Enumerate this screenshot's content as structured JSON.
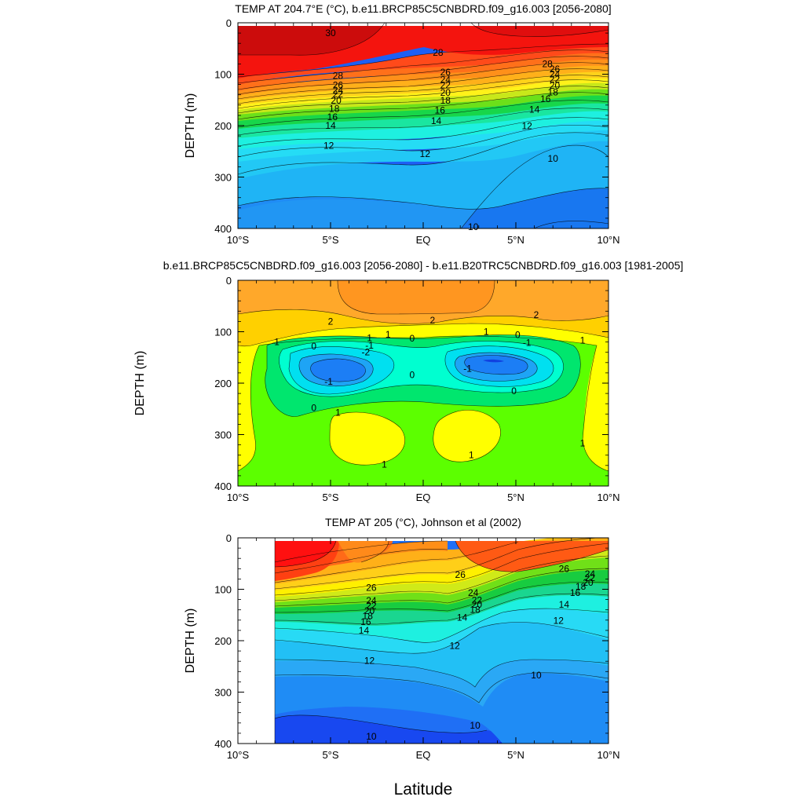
{
  "figure": {
    "xlabel": "Latitude"
  },
  "chart_data": [
    {
      "type": "heatmap",
      "title": "TEMP AT 204.7°E (°C), b.e11.BRCP85C5CNBDRD.f09_g16.003 [2056-2080]",
      "ylabel": "DEPTH (m)",
      "xlim": [
        -10,
        10
      ],
      "ylim": [
        400,
        0
      ],
      "x_ticks": [
        -10,
        -5,
        0,
        5,
        10
      ],
      "x_tick_labels": [
        "10°S",
        "5°S",
        "EQ",
        "5°N",
        "10°N"
      ],
      "y_ticks": [
        0,
        100,
        200,
        300,
        400
      ],
      "y_tick_labels": [
        "0",
        "100",
        "200",
        "300",
        "400"
      ],
      "contour_labels": [
        {
          "text": "30",
          "x": -5,
          "y": 20
        },
        {
          "text": "28",
          "x": 0.8,
          "y": 58
        },
        {
          "text": "28",
          "x": -4.6,
          "y": 103
        },
        {
          "text": "26",
          "x": -4.6,
          "y": 121
        },
        {
          "text": "24",
          "x": -4.6,
          "y": 131
        },
        {
          "text": "22",
          "x": -4.6,
          "y": 139
        },
        {
          "text": "20",
          "x": -4.7,
          "y": 151
        },
        {
          "text": "18",
          "x": -4.8,
          "y": 167
        },
        {
          "text": "16",
          "x": -4.9,
          "y": 183
        },
        {
          "text": "14",
          "x": -5.0,
          "y": 200
        },
        {
          "text": "12",
          "x": -5.1,
          "y": 239
        },
        {
          "text": "26",
          "x": 1.2,
          "y": 96
        },
        {
          "text": "24",
          "x": 1.2,
          "y": 111
        },
        {
          "text": "22",
          "x": 1.2,
          "y": 121
        },
        {
          "text": "20",
          "x": 1.2,
          "y": 136
        },
        {
          "text": "18",
          "x": 1.2,
          "y": 151
        },
        {
          "text": "16",
          "x": 0.9,
          "y": 170
        },
        {
          "text": "14",
          "x": 0.7,
          "y": 191
        },
        {
          "text": "12",
          "x": 0.1,
          "y": 255
        },
        {
          "text": "28",
          "x": 6.7,
          "y": 80
        },
        {
          "text": "26",
          "x": 7.1,
          "y": 90
        },
        {
          "text": "24",
          "x": 7.1,
          "y": 100
        },
        {
          "text": "22",
          "x": 7.1,
          "y": 110
        },
        {
          "text": "20",
          "x": 7.1,
          "y": 122
        },
        {
          "text": "18",
          "x": 7.0,
          "y": 135
        },
        {
          "text": "16",
          "x": 6.6,
          "y": 148
        },
        {
          "text": "14",
          "x": 6.0,
          "y": 169
        },
        {
          "text": "12",
          "x": 5.6,
          "y": 201
        },
        {
          "text": "10",
          "x": 7.0,
          "y": 264
        },
        {
          "text": "10",
          "x": 2.7,
          "y": 397
        }
      ]
    },
    {
      "type": "heatmap",
      "title": "b.e11.BRCP85C5CNBDRD.f09_g16.003 [2056-2080] - b.e11.B20TRC5CNBDRD.f09_g16.003 [1981-2005]",
      "ylabel": "DEPTH (m)",
      "xlim": [
        -10,
        10
      ],
      "ylim": [
        400,
        0
      ],
      "x_ticks": [
        -10,
        -5,
        0,
        5,
        10
      ],
      "x_tick_labels": [
        "10°S",
        "5°S",
        "EQ",
        "5°N",
        "10°N"
      ],
      "y_ticks": [
        0,
        100,
        200,
        300,
        400
      ],
      "y_tick_labels": [
        "0",
        "100",
        "200",
        "300",
        "400"
      ],
      "contour_labels": [
        {
          "text": "2",
          "x": -5,
          "y": 80
        },
        {
          "text": "2",
          "x": 0.5,
          "y": 78
        },
        {
          "text": "2",
          "x": 6.1,
          "y": 67
        },
        {
          "text": "1",
          "x": -7.9,
          "y": 120
        },
        {
          "text": "0",
          "x": -5.9,
          "y": 128
        },
        {
          "text": "1",
          "x": -2.9,
          "y": 112
        },
        {
          "text": "1",
          "x": -1.9,
          "y": 105
        },
        {
          "text": "-1",
          "x": -2.9,
          "y": 127
        },
        {
          "text": "-2",
          "x": -3.1,
          "y": 140
        },
        {
          "text": "-1",
          "x": -5.1,
          "y": 197
        },
        {
          "text": "0",
          "x": -5.9,
          "y": 248
        },
        {
          "text": "0",
          "x": -0.6,
          "y": 113
        },
        {
          "text": "0",
          "x": -0.6,
          "y": 184
        },
        {
          "text": "1",
          "x": 3.4,
          "y": 100
        },
        {
          "text": "0",
          "x": 5.1,
          "y": 106
        },
        {
          "text": "-1",
          "x": 5.6,
          "y": 121
        },
        {
          "text": "-1",
          "x": 2.4,
          "y": 172
        },
        {
          "text": "0",
          "x": 4.9,
          "y": 215
        },
        {
          "text": "1",
          "x": -4.6,
          "y": 257
        },
        {
          "text": "1",
          "x": -2.1,
          "y": 358
        },
        {
          "text": "1",
          "x": 2.6,
          "y": 340
        },
        {
          "text": "1",
          "x": 8.6,
          "y": 117
        },
        {
          "text": "1",
          "x": 8.6,
          "y": 317
        }
      ]
    },
    {
      "type": "heatmap",
      "title": "TEMP AT 205 (°C), Johnson et al (2002)",
      "ylabel": "DEPTH (m)",
      "xlim": [
        -10,
        10
      ],
      "ylim": [
        400,
        0
      ],
      "x_ticks": [
        -10,
        -5,
        0,
        5,
        10
      ],
      "x_tick_labels": [
        "10°S",
        "5°S",
        "EQ",
        "5°N",
        "10°N"
      ],
      "y_ticks": [
        0,
        100,
        200,
        300,
        400
      ],
      "y_tick_labels": [
        "0",
        "100",
        "200",
        "300",
        "400"
      ],
      "contour_labels": [
        {
          "text": "26",
          "x": -2.8,
          "y": 97
        },
        {
          "text": "24",
          "x": -2.8,
          "y": 122
        },
        {
          "text": "22",
          "x": -2.8,
          "y": 132
        },
        {
          "text": "20",
          "x": -2.9,
          "y": 142
        },
        {
          "text": "18",
          "x": -3.0,
          "y": 152
        },
        {
          "text": "16",
          "x": -3.1,
          "y": 163
        },
        {
          "text": "14",
          "x": -3.2,
          "y": 180
        },
        {
          "text": "12",
          "x": -2.9,
          "y": 239
        },
        {
          "text": "10",
          "x": -2.8,
          "y": 386
        },
        {
          "text": "26",
          "x": 2.0,
          "y": 72
        },
        {
          "text": "24",
          "x": 2.7,
          "y": 107
        },
        {
          "text": "22",
          "x": 2.9,
          "y": 121
        },
        {
          "text": "20",
          "x": 2.9,
          "y": 130
        },
        {
          "text": "18",
          "x": 2.8,
          "y": 140
        },
        {
          "text": "14",
          "x": 2.1,
          "y": 155
        },
        {
          "text": "12",
          "x": 1.7,
          "y": 210
        },
        {
          "text": "10",
          "x": 2.8,
          "y": 365
        },
        {
          "text": "26",
          "x": 7.6,
          "y": 60
        },
        {
          "text": "24",
          "x": 9.0,
          "y": 70
        },
        {
          "text": "22",
          "x": 9.0,
          "y": 78
        },
        {
          "text": "20",
          "x": 8.9,
          "y": 87
        },
        {
          "text": "18",
          "x": 8.5,
          "y": 95
        },
        {
          "text": "16",
          "x": 8.2,
          "y": 107
        },
        {
          "text": "14",
          "x": 7.6,
          "y": 130
        },
        {
          "text": "12",
          "x": 7.3,
          "y": 161
        },
        {
          "text": "10",
          "x": 6.1,
          "y": 267
        }
      ]
    }
  ]
}
